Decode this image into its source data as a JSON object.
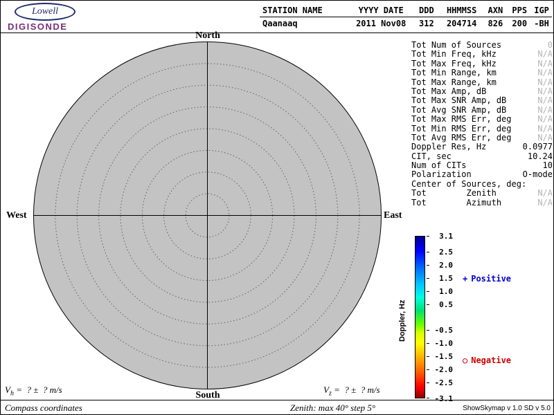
{
  "colors": {
    "plot_fill": "#c3c3c3",
    "positive": "#0000cd",
    "negative": "#cd0000",
    "na_value": "#b4b4b4"
  },
  "logo": {
    "name": "Lowell",
    "product": "DIGISONDE"
  },
  "header": {
    "columns": [
      {
        "label": "STATION NAME",
        "value": "Qaanaaq"
      },
      {
        "label": "YYYY DATE",
        "value": "2011 Nov08"
      },
      {
        "label": "DDD",
        "value": "312"
      },
      {
        "label": "HHMMSS",
        "value": "204714"
      },
      {
        "label": "AXN",
        "value": "826"
      },
      {
        "label": "PPS",
        "value": "200"
      },
      {
        "label": "IGP",
        "value": "-BH"
      }
    ]
  },
  "compass": {
    "north": "North",
    "south": "South",
    "west": "West",
    "east": "East"
  },
  "stats": {
    "rows": [
      {
        "label": "Tot Num of Sources",
        "value": "0",
        "na": true
      },
      {
        "label": "Tot Min Freq, kHz",
        "value": "N/A",
        "na": true
      },
      {
        "label": "Tot Max Freq, kHz",
        "value": "N/A",
        "na": true
      },
      {
        "label": "Tot Min Range, km",
        "value": "N/A",
        "na": true
      },
      {
        "label": "Tot Max Range, km",
        "value": "N/A",
        "na": true
      },
      {
        "label": "Tot Max Amp, dB",
        "value": "N/A",
        "na": true
      },
      {
        "label": "Tot Max SNR Amp, dB",
        "value": "N/A",
        "na": true
      },
      {
        "label": "Tot Avg SNR Amp, dB",
        "value": "N/A",
        "na": true
      },
      {
        "label": "Tot Max RMS Err, deg",
        "value": "N/A",
        "na": true
      },
      {
        "label": "Tot Min RMS Err, deg",
        "value": "N/A",
        "na": true
      },
      {
        "label": "Tot Avg RMS Err, deg",
        "value": "N/A",
        "na": true
      },
      {
        "label": "Doppler Res, Hz",
        "value": "0.0977",
        "na": false
      },
      {
        "label": "CIT, sec",
        "value": "10.24",
        "na": false
      },
      {
        "label": "Num of CITs",
        "value": "10",
        "na": false
      },
      {
        "label": "Polarization",
        "value": "O-mode",
        "na": false
      },
      {
        "label": "Center of Sources, deg:",
        "value": "",
        "na": false
      },
      {
        "label": "Tot        Zenith",
        "value": "N/A",
        "na": true
      },
      {
        "label": "Tot        Azimuth",
        "value": "N/A",
        "na": true
      }
    ]
  },
  "colorbar": {
    "title": "Doppler, Hz",
    "max": 3.1,
    "min": -3.1,
    "ticks": [
      "3.1",
      "2.5",
      "2.0",
      "1.5",
      "1.0",
      "0.5",
      "-0.5",
      "-1.0",
      "-1.5",
      "-2.0",
      "-2.5",
      "-3.1"
    ]
  },
  "legend": {
    "positive_symbol": "+",
    "positive_label": "Positive",
    "negative_symbol": "○",
    "negative_label": "Negative"
  },
  "footer": {
    "vh_prefix": "V",
    "vh_sub": "h",
    "vz_prefix": "V",
    "vz_sub": "z",
    "v_rest": " =  ? ±  ? m/s",
    "coordinates_note": "Compass coordinates",
    "zenith_note": "Zenith: max 40°  step 5°",
    "version": "ShowSkymap v 1.0  SD v 5.0"
  },
  "chart_data": {
    "type": "scatter",
    "subtype": "polar-skymap",
    "title": "Digisonde drift skymap — Qaanaaq, 2011 Nov08 312 204714",
    "points": [],
    "num_sources": 0,
    "zenith_max_deg": 40,
    "zenith_step_deg": 5,
    "rings_deg": [
      5,
      10,
      15,
      20,
      25,
      30,
      35,
      40
    ],
    "compass_labels": [
      "North",
      "East",
      "South",
      "West"
    ],
    "colorbar": {
      "label": "Doppler, Hz",
      "min": -3.1,
      "max": 3.1,
      "ticks": [
        3.1,
        2.5,
        2.0,
        1.5,
        1.0,
        0.5,
        -0.5,
        -1.0,
        -1.5,
        -2.0,
        -2.5,
        -3.1
      ]
    },
    "legend": [
      "+ Positive (blue)",
      "○ Negative (red)"
    ]
  }
}
